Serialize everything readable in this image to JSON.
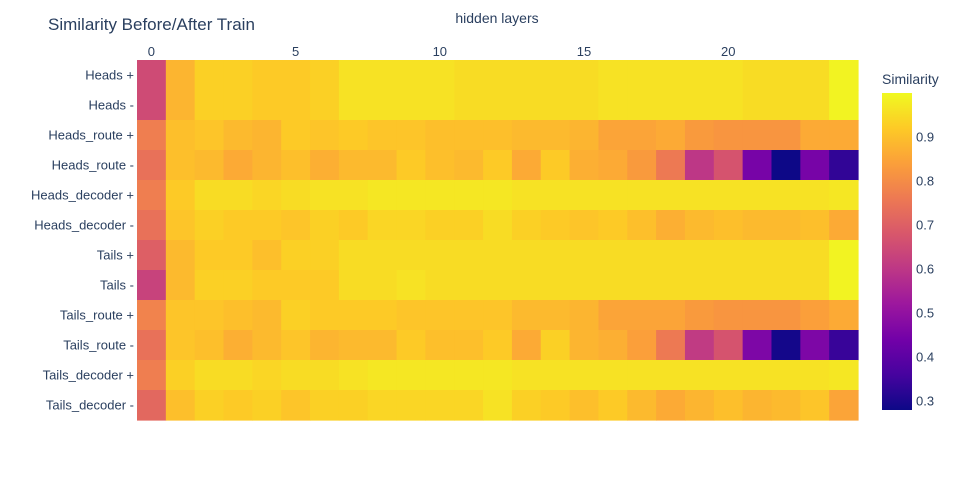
{
  "chart_data": {
    "type": "heatmap",
    "title": "Similarity Before/After Train",
    "xlabel": "hidden layers",
    "ylabel": "",
    "x": [
      0,
      1,
      2,
      3,
      4,
      5,
      6,
      7,
      8,
      9,
      10,
      11,
      12,
      13,
      14,
      15,
      16,
      17,
      18,
      19,
      20,
      21,
      22,
      23,
      24
    ],
    "x_ticks": [
      0,
      5,
      10,
      15,
      20
    ],
    "x_axis_position": "top",
    "y": [
      "Heads +",
      "Heads -",
      "Heads_route +",
      "Heads_route -",
      "Heads_decoder +",
      "Heads_decoder -",
      "Tails +",
      "Tails -",
      "Tails_route +",
      "Tails_route -",
      "Tails_decoder +",
      "Tails_decoder -"
    ],
    "z": [
      [
        0.65,
        0.88,
        0.93,
        0.93,
        0.92,
        0.92,
        0.93,
        0.96,
        0.96,
        0.96,
        0.96,
        0.95,
        0.95,
        0.95,
        0.95,
        0.95,
        0.96,
        0.96,
        0.96,
        0.96,
        0.96,
        0.95,
        0.95,
        0.95,
        0.99
      ],
      [
        0.65,
        0.88,
        0.93,
        0.93,
        0.92,
        0.92,
        0.93,
        0.96,
        0.96,
        0.96,
        0.96,
        0.95,
        0.95,
        0.95,
        0.95,
        0.95,
        0.96,
        0.96,
        0.96,
        0.96,
        0.96,
        0.95,
        0.95,
        0.95,
        0.99
      ],
      [
        0.77,
        0.9,
        0.91,
        0.89,
        0.88,
        0.92,
        0.91,
        0.92,
        0.91,
        0.91,
        0.9,
        0.9,
        0.9,
        0.89,
        0.89,
        0.88,
        0.85,
        0.85,
        0.86,
        0.83,
        0.82,
        0.82,
        0.82,
        0.86,
        0.86
      ],
      [
        0.74,
        0.9,
        0.89,
        0.86,
        0.88,
        0.9,
        0.87,
        0.89,
        0.89,
        0.92,
        0.9,
        0.89,
        0.92,
        0.86,
        0.92,
        0.87,
        0.86,
        0.83,
        0.76,
        0.6,
        0.67,
        0.45,
        0.28,
        0.45,
        0.33
      ],
      [
        0.77,
        0.92,
        0.95,
        0.95,
        0.94,
        0.95,
        0.96,
        0.96,
        0.97,
        0.97,
        0.97,
        0.97,
        0.97,
        0.96,
        0.96,
        0.96,
        0.96,
        0.96,
        0.96,
        0.96,
        0.96,
        0.96,
        0.96,
        0.96,
        0.97
      ],
      [
        0.74,
        0.91,
        0.93,
        0.92,
        0.92,
        0.91,
        0.93,
        0.92,
        0.94,
        0.94,
        0.93,
        0.93,
        0.95,
        0.93,
        0.92,
        0.91,
        0.92,
        0.9,
        0.87,
        0.89,
        0.9,
        0.89,
        0.89,
        0.9,
        0.86
      ],
      [
        0.7,
        0.89,
        0.92,
        0.92,
        0.9,
        0.93,
        0.93,
        0.95,
        0.95,
        0.95,
        0.95,
        0.95,
        0.95,
        0.95,
        0.95,
        0.95,
        0.95,
        0.95,
        0.95,
        0.95,
        0.95,
        0.95,
        0.95,
        0.95,
        0.99
      ],
      [
        0.63,
        0.89,
        0.93,
        0.93,
        0.92,
        0.92,
        0.92,
        0.95,
        0.95,
        0.96,
        0.95,
        0.95,
        0.95,
        0.95,
        0.95,
        0.95,
        0.95,
        0.95,
        0.95,
        0.95,
        0.95,
        0.95,
        0.95,
        0.95,
        0.99
      ],
      [
        0.78,
        0.91,
        0.91,
        0.9,
        0.89,
        0.93,
        0.92,
        0.92,
        0.92,
        0.91,
        0.91,
        0.91,
        0.91,
        0.89,
        0.89,
        0.88,
        0.85,
        0.85,
        0.85,
        0.83,
        0.82,
        0.82,
        0.82,
        0.84,
        0.86
      ],
      [
        0.74,
        0.91,
        0.9,
        0.87,
        0.89,
        0.91,
        0.88,
        0.89,
        0.89,
        0.92,
        0.9,
        0.9,
        0.92,
        0.86,
        0.93,
        0.88,
        0.87,
        0.84,
        0.76,
        0.61,
        0.67,
        0.46,
        0.29,
        0.46,
        0.34
      ],
      [
        0.77,
        0.93,
        0.95,
        0.95,
        0.94,
        0.95,
        0.95,
        0.96,
        0.97,
        0.97,
        0.97,
        0.97,
        0.97,
        0.96,
        0.96,
        0.96,
        0.96,
        0.96,
        0.96,
        0.96,
        0.96,
        0.96,
        0.96,
        0.96,
        0.97
      ],
      [
        0.72,
        0.9,
        0.93,
        0.92,
        0.93,
        0.91,
        0.93,
        0.93,
        0.94,
        0.94,
        0.94,
        0.94,
        0.96,
        0.93,
        0.92,
        0.9,
        0.92,
        0.89,
        0.86,
        0.88,
        0.9,
        0.88,
        0.89,
        0.91,
        0.85
      ]
    ],
    "colorbar": {
      "title": "Similarity",
      "zmin": 0.28,
      "zmax": 1.0,
      "tickvals": [
        0.3,
        0.4,
        0.5,
        0.6,
        0.7,
        0.8,
        0.9
      ],
      "colorscale": "plasma"
    },
    "grid": false
  },
  "colors": {
    "plasma": [
      "#0d0887",
      "#46039f",
      "#7201a8",
      "#9c179e",
      "#bd3786",
      "#d8576b",
      "#ed7953",
      "#fb9f3a",
      "#fdca26",
      "#f0f921"
    ],
    "text": "#2a3f5f",
    "background": "#ffffff"
  }
}
